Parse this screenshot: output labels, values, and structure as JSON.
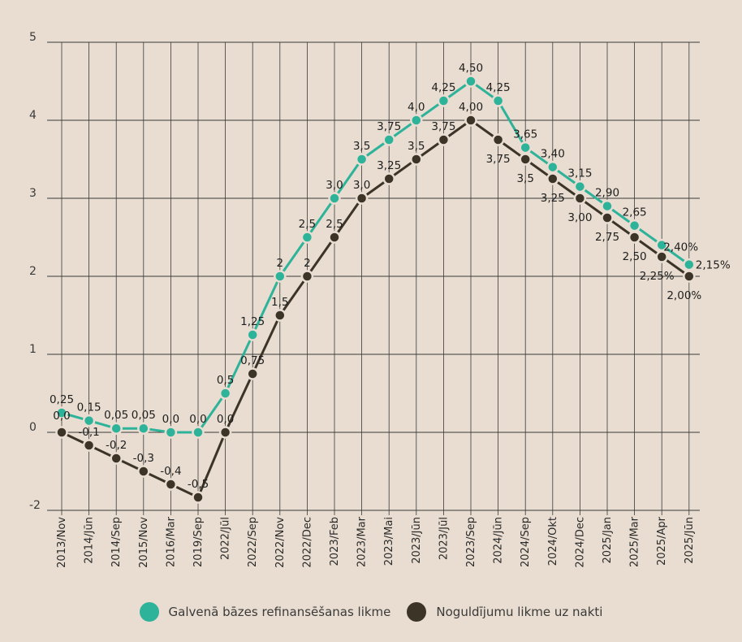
{
  "colors": {
    "teal": "#2db39a",
    "dark": "#3d3428",
    "grid": "#3a3a3a",
    "background": "#e8ddd0"
  },
  "legend": [
    {
      "label": "Galvenā bāzes refinansēšanas likme",
      "color": "#2db39a"
    },
    {
      "label": "Noguldījumu likme uz nakti",
      "color": "#3d3428"
    }
  ],
  "chart_data": {
    "type": "line",
    "categories": [
      "2013/Nov",
      "2014/Jūn",
      "2014/Sep",
      "2015/Nov",
      "2016/Mar",
      "2019/Sep",
      "2022/Jūl",
      "2022/Sep",
      "2022/Nov",
      "2022/Dec",
      "2023/Feb",
      "2023/Mar",
      "2023/Mai",
      "2023/Jūn",
      "2023/Jūl",
      "2023/Sep",
      "2024/Jūn",
      "2024/Sep",
      "2024/Okt",
      "2024/Dec",
      "2025/Jan",
      "2025/Mar",
      "2025/Apr",
      "2025/Jūn"
    ],
    "y_ticks": [
      "5",
      "4",
      "3",
      "2",
      "1",
      "0",
      "-2"
    ],
    "series": [
      {
        "name": "Galvenā bāzes refinansēšanas likme",
        "color": "#2db39a",
        "values": [
          0.25,
          0.15,
          0.05,
          0.05,
          0.0,
          0.0,
          0.5,
          1.25,
          2,
          2.5,
          3.0,
          3.5,
          3.75,
          4.0,
          4.25,
          4.5,
          4.25,
          3.65,
          3.4,
          3.15,
          2.9,
          2.65,
          2.4,
          2.15
        ],
        "labels": [
          "0,25",
          "0,15",
          "0,05",
          "0,05",
          "0,0",
          "0,0",
          "0,5",
          "1,25",
          "2",
          "2,5",
          "3,0",
          "3,5",
          "3,75",
          "4,0",
          "4,25",
          "4,50",
          "4,25",
          "3,65",
          "3,40",
          "3,15",
          "2,90",
          "2,65",
          "2,40%",
          "2,15%"
        ]
      },
      {
        "name": "Noguldījumu likme uz nakti",
        "color": "#3d3428",
        "values": [
          0.0,
          -0.1,
          -0.2,
          -0.3,
          -0.4,
          -0.5,
          0.0,
          0.75,
          1.5,
          2,
          2.5,
          3.0,
          3.25,
          3.5,
          3.75,
          4.0,
          3.75,
          3.5,
          3.25,
          3.0,
          2.75,
          2.5,
          2.25,
          2.0
        ],
        "labels": [
          "0,0",
          "-0,1",
          "-0,2",
          "-0,3",
          "-0,4",
          "-0,5",
          "0,0",
          "0,75",
          "1,5",
          "2",
          "2,5",
          "3,0",
          "3,25",
          "3,5",
          "3,75",
          "4,00",
          "3,75",
          "3,5",
          "3,25",
          "3,00",
          "2,75",
          "2,50",
          "2,25%",
          "2,00%"
        ]
      }
    ]
  }
}
